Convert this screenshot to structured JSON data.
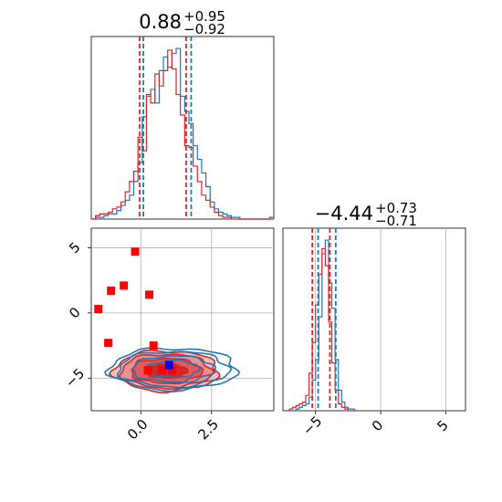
{
  "chart_data": {
    "type": "corner",
    "colors": {
      "series_a": "#1f77b4",
      "series_b": "#d62728",
      "marker_a": "#0000ff",
      "marker_b": "#ff0000",
      "grid": "#b0b0b0"
    },
    "grid": true,
    "panels": {
      "hist_param1": {
        "type": "histogram",
        "title": {
          "median": "0.88",
          "plus": "+0.95",
          "minus": "−0.92"
        },
        "xlim": [
          -1.75,
          4.7
        ],
        "quantiles": {
          "series_a": [
            0.09,
            1.78
          ],
          "series_b": [
            -0.04,
            1.6
          ]
        },
        "series": [
          {
            "name": "",
            "color": "#1f77b4",
            "bins": [
              -1.75,
              -1.6,
              -1.45,
              -1.3,
              -1.15,
              -1.0,
              -0.85,
              -0.7,
              -0.55,
              -0.4,
              -0.25,
              -0.1,
              0.05,
              0.2,
              0.35,
              0.5,
              0.65,
              0.8,
              0.95,
              1.1,
              1.25,
              1.4,
              1.55,
              1.7,
              1.85,
              2.0,
              2.15,
              2.3,
              2.45,
              2.6,
              2.75,
              2.9,
              3.05,
              3.2,
              3.35,
              3.5,
              3.65,
              3.8,
              3.95,
              4.1,
              4.25,
              4.4,
              4.55,
              4.7
            ],
            "counts": [
              0,
              1,
              1,
              2,
              3,
              3,
              5,
              8,
              11,
              14,
              22,
              33,
              60,
              72,
              76,
              68,
              87,
              95,
              89,
              97,
              100,
              72,
              63,
              56,
              43,
              35,
              27,
              19,
              10,
              6,
              4,
              3,
              2,
              1,
              1,
              0,
              0,
              0,
              0,
              0,
              0,
              0,
              1
            ]
          },
          {
            "name": "",
            "color": "#d62728",
            "bins": [
              -1.75,
              -1.6,
              -1.45,
              -1.3,
              -1.15,
              -1.0,
              -0.85,
              -0.7,
              -0.55,
              -0.4,
              -0.25,
              -0.1,
              0.05,
              0.2,
              0.35,
              0.5,
              0.65,
              0.8,
              0.95,
              1.1,
              1.25,
              1.4,
              1.55,
              1.7,
              1.85,
              2.0,
              2.15,
              2.3,
              2.45,
              2.6,
              2.75,
              2.9,
              3.05,
              3.2,
              3.35,
              3.5,
              3.65,
              3.8,
              3.95,
              4.1,
              4.25,
              4.4,
              4.55,
              4.7
            ],
            "counts": [
              0,
              2,
              3,
              3,
              4,
              6,
              7,
              10,
              16,
              22,
              28,
              48,
              40,
              73,
              68,
              85,
              78,
              87,
              99,
              88,
              73,
              61,
              43,
              42,
              31,
              22,
              14,
              11,
              7,
              4,
              2,
              1,
              1,
              0,
              0,
              0,
              0,
              0,
              0,
              0,
              0,
              0,
              0
            ]
          }
        ]
      },
      "hist_param2": {
        "type": "histogram",
        "title": {
          "median": "−4.44",
          "plus": "+0.73",
          "minus": "−0.71"
        },
        "xlim": [
          -7.5,
          6.5
        ],
        "xticks": [
          -5,
          0,
          5
        ],
        "xticklabels": [
          "−5",
          "0",
          "5"
        ],
        "quantiles": {
          "series_a": [
            -4.8,
            -3.45
          ],
          "series_b": [
            -5.25,
            -3.9
          ]
        },
        "series": [
          {
            "name": "",
            "color": "#1f77b4",
            "bins": [
              -7.0,
              -6.75,
              -6.5,
              -6.25,
              -6.0,
              -5.75,
              -5.5,
              -5.25,
              -5.0,
              -4.75,
              -4.5,
              -4.25,
              -4.0,
              -3.75,
              -3.5,
              -3.25,
              -3.0,
              -2.75,
              -2.5,
              -2.25,
              -2.0
            ],
            "counts": [
              0,
              0,
              1,
              2,
              3,
              4,
              8,
              18,
              30,
              55,
              92,
              100,
              75,
              60,
              30,
              12,
              5,
              2,
              1,
              1
            ]
          },
          {
            "name": "",
            "color": "#d62728",
            "bins": [
              -7.0,
              -6.75,
              -6.5,
              -6.25,
              -6.0,
              -5.75,
              -5.5,
              -5.25,
              -5.0,
              -4.75,
              -4.5,
              -4.25,
              -4.0,
              -3.75,
              -3.5,
              -3.25,
              -3.0,
              -2.75,
              -2.5,
              -2.25,
              -2.0
            ],
            "counts": [
              1,
              2,
              3,
              4,
              5,
              9,
              22,
              40,
              62,
              80,
              95,
              85,
              52,
              28,
              12,
              4,
              2,
              1,
              0,
              0
            ]
          }
        ]
      },
      "joint": {
        "type": "scatter_contour",
        "xlim": [
          -1.75,
          4.7
        ],
        "ylim": [
          -7.5,
          6.5
        ],
        "xticks": [
          0,
          2.5
        ],
        "xticklabels": [
          "0.0",
          "2.5"
        ],
        "yticks": [
          -5,
          0,
          5
        ],
        "yticklabels": [
          "−5",
          "0",
          "5"
        ],
        "series_b_contours": {
          "center": [
            0.9,
            -4.45
          ],
          "half_widths_x": [
            0.75,
            1.25,
            1.6,
            1.85
          ],
          "half_widths_y": [
            0.55,
            0.95,
            1.3,
            1.55
          ],
          "fills": [
            "#d62728",
            "#e45a5a",
            "#ec8f8f",
            "#f4c0c0"
          ]
        },
        "series_a_contours": {
          "center": [
            1.15,
            -4.3
          ],
          "half_widths_x": [
            0.9,
            1.45,
            1.95,
            2.25
          ],
          "half_widths_y": [
            0.65,
            1.0,
            1.35,
            1.6
          ]
        },
        "points_series_b": [
          [
            -1.5,
            0.3
          ],
          [
            -1.05,
            1.7
          ],
          [
            -0.6,
            2.1
          ],
          [
            -0.2,
            4.7
          ],
          [
            0.3,
            1.4
          ],
          [
            -1.15,
            -2.3
          ],
          [
            0.45,
            -2.5
          ],
          [
            0.25,
            -4.4
          ],
          [
            0.75,
            -4.4
          ],
          [
            1.1,
            -4.4
          ]
        ],
        "points_series_a": [
          [
            1.0,
            -4.0
          ]
        ]
      }
    }
  }
}
